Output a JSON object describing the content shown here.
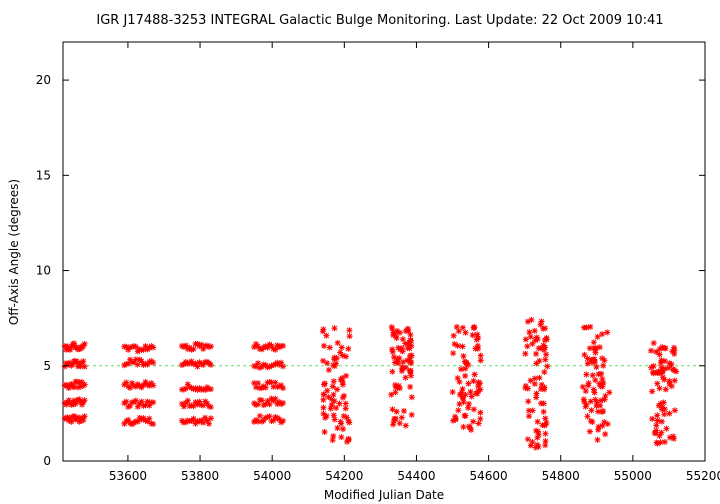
{
  "chart_data": {
    "type": "scatter",
    "title": "IGR J17488-3253   INTEGRAL Galactic Bulge Monitoring.  Last Update: 22 Oct 2009 10:41",
    "xlabel": "Modified Julian Date",
    "ylabel": "Off-Axis Angle (degrees)",
    "xlim": [
      53420,
      55200
    ],
    "ylim": [
      0,
      22
    ],
    "xticks": [
      53600,
      53800,
      54000,
      54200,
      54400,
      54600,
      54800,
      55000,
      55200
    ],
    "yticks": [
      0,
      5,
      10,
      15,
      20
    ],
    "grid": false,
    "reference_line": {
      "y": 5,
      "style": "dashed",
      "color": "#66dd66"
    },
    "marker": {
      "shape": "asterisk",
      "color": "#ff0000"
    },
    "series": [
      {
        "name": "",
        "clusters": [
          {
            "x_start": 53425,
            "x_end": 53480,
            "levels": [
              2.2,
              3.1,
              4.0,
              5.1,
              6.0
            ]
          },
          {
            "x_start": 53590,
            "x_end": 53670,
            "levels": [
              2.1,
              3.0,
              4.0,
              5.2,
              5.9
            ]
          },
          {
            "x_start": 53750,
            "x_end": 53830,
            "levels": [
              2.1,
              3.0,
              3.9,
              5.1,
              6.0
            ]
          },
          {
            "x_start": 53950,
            "x_end": 54030,
            "levels": [
              2.2,
              3.1,
              4.0,
              5.0,
              6.0
            ]
          },
          {
            "x_start": 54140,
            "x_end": 54215,
            "y_min": 1.0,
            "y_max": 7.0
          },
          {
            "x_start": 54330,
            "x_end": 54390,
            "y_min": 1.7,
            "y_max": 7.1
          },
          {
            "x_start": 54500,
            "x_end": 54580,
            "y_min": 1.6,
            "y_max": 7.1
          },
          {
            "x_start": 54700,
            "x_end": 54765,
            "y_min": 0.7,
            "y_max": 7.5
          },
          {
            "x_start": 54860,
            "x_end": 54935,
            "y_min": 1.1,
            "y_max": 7.1
          },
          {
            "x_start": 55050,
            "x_end": 55120,
            "y_min": 0.9,
            "y_max": 6.2
          }
        ]
      }
    ]
  },
  "colors": {
    "marker": "#ff0000",
    "reference_line": "#66dd66",
    "axis": "#000000",
    "background": "#ffffff"
  }
}
